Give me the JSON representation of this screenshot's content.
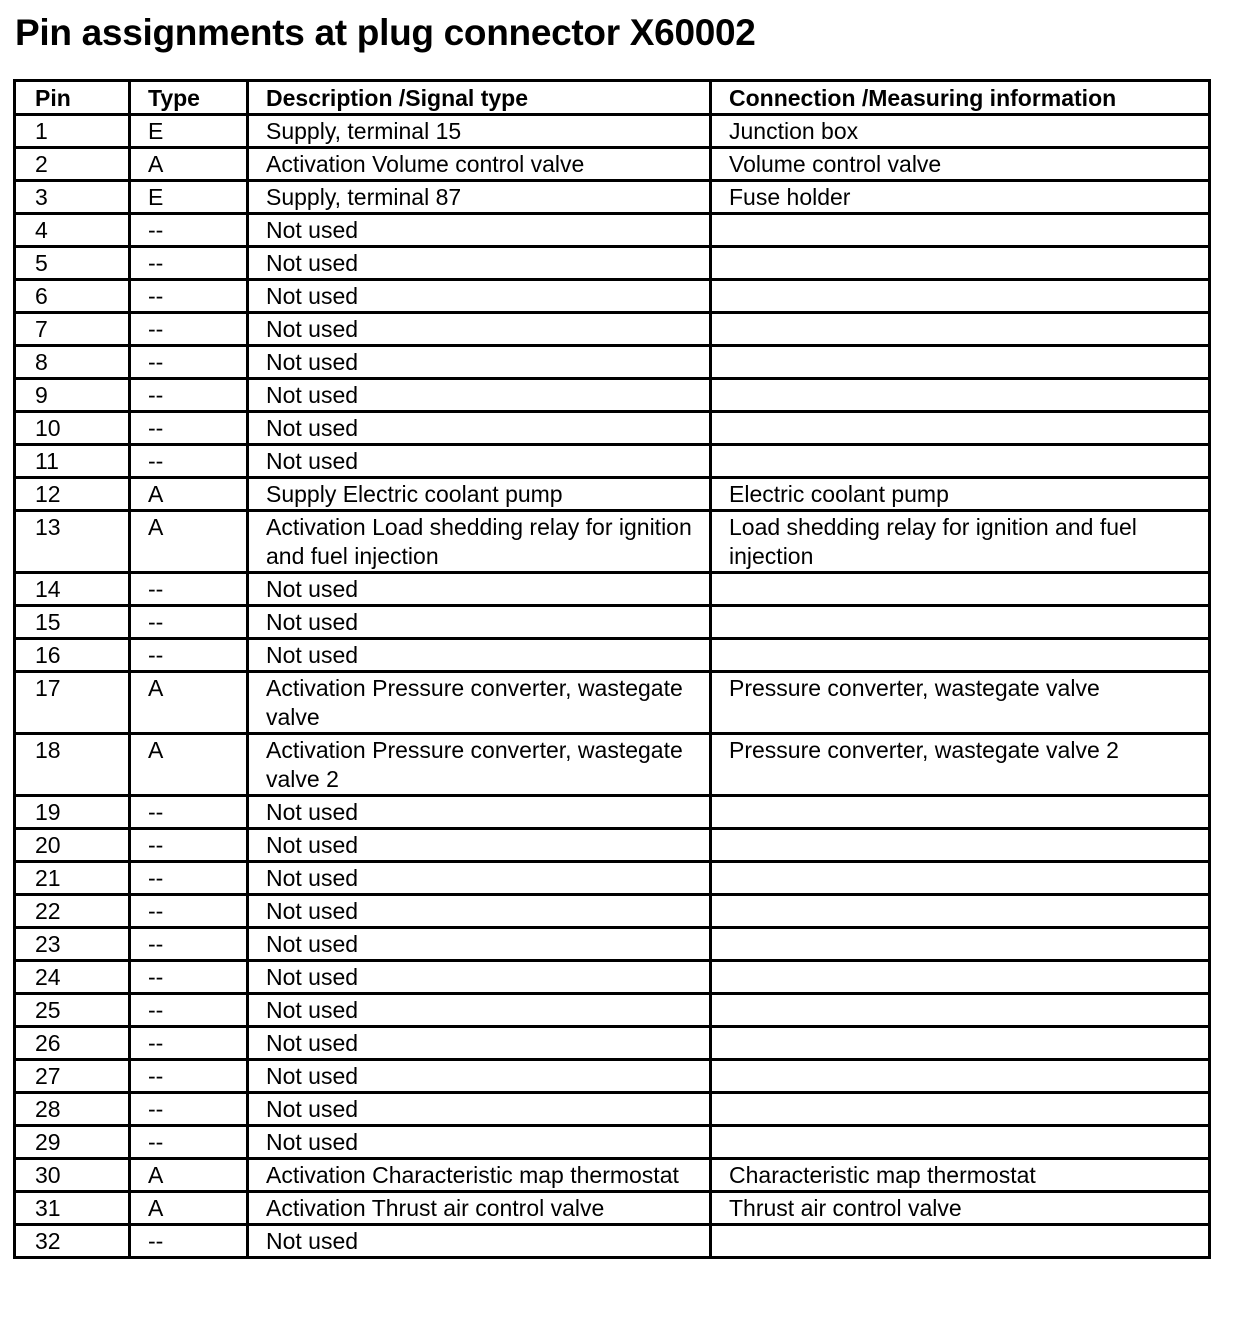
{
  "title": "Pin assignments at plug connector X60002",
  "table": {
    "headers": [
      "Pin",
      "Type",
      "Description /Signal type",
      "Connection /Measuring information"
    ],
    "rows": [
      [
        "1",
        "E",
        "Supply, terminal 15",
        "Junction box"
      ],
      [
        "2",
        "A",
        "Activation Volume control valve",
        "Volume control valve"
      ],
      [
        "3",
        "E",
        "Supply, terminal 87",
        "Fuse holder"
      ],
      [
        "4",
        "--",
        "Not used",
        ""
      ],
      [
        "5",
        "--",
        "Not used",
        ""
      ],
      [
        "6",
        "--",
        "Not used",
        ""
      ],
      [
        "7",
        "--",
        "Not used",
        ""
      ],
      [
        "8",
        "--",
        "Not used",
        ""
      ],
      [
        "9",
        "--",
        "Not used",
        ""
      ],
      [
        "10",
        "--",
        "Not used",
        ""
      ],
      [
        "11",
        "--",
        "Not used",
        ""
      ],
      [
        "12",
        "A",
        "Supply Electric coolant pump",
        "Electric coolant pump"
      ],
      [
        "13",
        "A",
        "Activation Load shedding relay for ignition and fuel injection",
        "Load shedding relay for ignition and fuel injection"
      ],
      [
        "14",
        "--",
        "Not used",
        ""
      ],
      [
        "15",
        "--",
        "Not used",
        ""
      ],
      [
        "16",
        "--",
        "Not used",
        ""
      ],
      [
        "17",
        "A",
        "Activation Pressure converter, wastegate valve",
        "Pressure converter, wastegate valve"
      ],
      [
        "18",
        "A",
        "Activation Pressure converter, wastegate valve 2",
        "Pressure converter, wastegate valve 2"
      ],
      [
        "19",
        "--",
        "Not used",
        ""
      ],
      [
        "20",
        "--",
        "Not used",
        ""
      ],
      [
        "21",
        "--",
        "Not used",
        ""
      ],
      [
        "22",
        "--",
        "Not used",
        ""
      ],
      [
        "23",
        "--",
        "Not used",
        ""
      ],
      [
        "24",
        "--",
        "Not used",
        ""
      ],
      [
        "25",
        "--",
        "Not used",
        ""
      ],
      [
        "26",
        "--",
        "Not used",
        ""
      ],
      [
        "27",
        "--",
        "Not used",
        ""
      ],
      [
        "28",
        "--",
        "Not used",
        ""
      ],
      [
        "29",
        "--",
        "Not used",
        ""
      ],
      [
        "30",
        "A",
        "Activation Characteristic map thermostat",
        "Characteristic map thermostat"
      ],
      [
        "31",
        "A",
        "Activation Thrust air control valve",
        "Thrust air control valve"
      ],
      [
        "32",
        "--",
        "Not used",
        ""
      ]
    ]
  }
}
